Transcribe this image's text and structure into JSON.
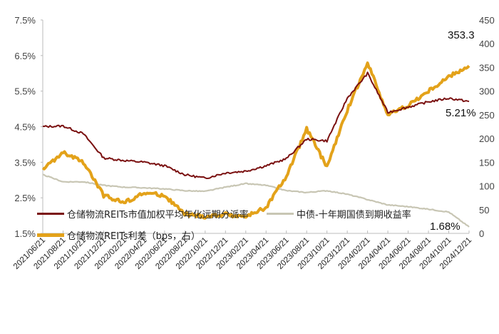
{
  "chart_data": {
    "type": "line",
    "title": "",
    "xlabel": "",
    "ylabel_left": "",
    "ylabel_right": "",
    "left_axis": {
      "ticks": [
        "1.5%",
        "2.5%",
        "3.5%",
        "4.5%",
        "5.5%",
        "6.5%",
        "7.5%"
      ],
      "range": [
        1.5,
        7.5
      ]
    },
    "right_axis": {
      "ticks": [
        "0",
        "50",
        "100",
        "150",
        "200",
        "250",
        "300",
        "350",
        "400",
        "450"
      ],
      "range": [
        0,
        450
      ]
    },
    "categories": [
      "2021/06/21",
      "2021/08/21",
      "2021/10/21",
      "2021/12/21",
      "2022/02/21",
      "2022/04/21",
      "2022/06/21",
      "2022/08/21",
      "2022/10/21",
      "2022/12/21",
      "2023/02/21",
      "2023/04/21",
      "2023/06/21",
      "2023/08/21",
      "2023/10/21",
      "2023/12/21",
      "2024/02/21",
      "2024/04/21",
      "2024/06/21",
      "2024/08/21",
      "2024/10/21",
      "2024/12/21"
    ],
    "grid": false,
    "legend_position": "bottom",
    "series": [
      {
        "name": "仓储物流REITs市值加权平均年化远期分派率",
        "axis": "left",
        "color": "#7a1010",
        "values": [
          4.5,
          4.52,
          4.3,
          3.62,
          3.55,
          3.5,
          3.4,
          3.15,
          3.05,
          3.2,
          3.25,
          3.4,
          3.6,
          4.15,
          4.1,
          5.3,
          6.0,
          4.9,
          5.05,
          5.2,
          5.3,
          5.21
        ]
      },
      {
        "name": "中债-十年期国债到期收益率",
        "axis": "left",
        "color": "#c8c6b4",
        "values": [
          3.15,
          2.95,
          2.95,
          2.85,
          2.8,
          2.78,
          2.75,
          2.7,
          2.68,
          2.8,
          2.9,
          2.85,
          2.7,
          2.65,
          2.7,
          2.6,
          2.45,
          2.3,
          2.25,
          2.18,
          2.1,
          1.68
        ]
      },
      {
        "name": "仓储物流REITs利差（bps，右）",
        "axis": "right",
        "color": "#e3a21a",
        "values": [
          135,
          170,
          150,
          80,
          65,
          85,
          80,
          40,
          35,
          40,
          35,
          55,
          120,
          220,
          140,
          260,
          360,
          250,
          270,
          300,
          330,
          353.3
        ]
      }
    ],
    "annotations": [
      "353.3",
      "5.21%",
      "1.68%"
    ]
  },
  "legend": {
    "items": [
      {
        "label": "仓储物流REITs市值加权平均年化远期分派率",
        "color": "#7a1010"
      },
      {
        "label": "中债-十年期国债到期收益率",
        "color": "#c8c6b4"
      },
      {
        "label": "仓储物流REITs利差（bps，右）",
        "color": "#e3a21a"
      }
    ]
  }
}
